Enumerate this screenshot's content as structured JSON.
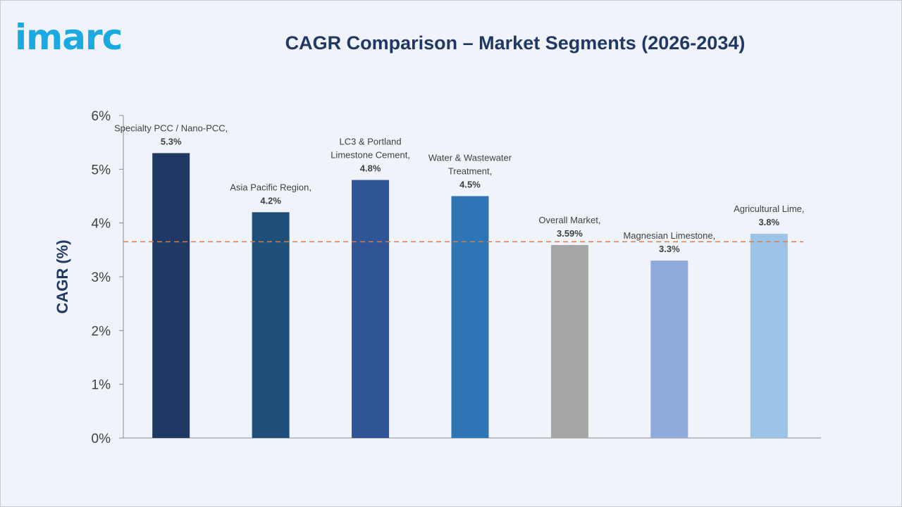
{
  "brand": {
    "logo_text": "imarc",
    "logo_color": "#1aa9e0"
  },
  "chart_data": {
    "type": "bar",
    "title": "CAGR Comparison – Market Segments (2026-2034)",
    "ylabel": "CAGR (%)",
    "xlabel": "",
    "ylim": [
      0,
      6
    ],
    "yticks": [
      "0%",
      "1%",
      "2%",
      "3%",
      "4%",
      "5%",
      "6%"
    ],
    "grid": false,
    "categories": [
      "Specialty PCC / Nano-PCC",
      "Asia Pacific Region",
      "LC3 & Portland Limestone Cement",
      "Water & Wastewater Treatment",
      "Overall Market",
      "Magnesian Limestone",
      "Agricultural Lime"
    ],
    "values": [
      5.3,
      4.2,
      4.8,
      4.5,
      3.59,
      3.3,
      3.8
    ],
    "data_labels": [
      {
        "lines": [
          "Specialty PCC / Nano-PCC,"
        ],
        "value": "5.3%"
      },
      {
        "lines": [
          "Asia Pacific Region,"
        ],
        "value": "4.2%"
      },
      {
        "lines": [
          "LC3 & Portland",
          "Limestone Cement,"
        ],
        "value": "4.8%"
      },
      {
        "lines": [
          "Water & Wastewater",
          "Treatment,"
        ],
        "value": "4.5%"
      },
      {
        "lines": [
          "Overall Market,"
        ],
        "value": "3.59%"
      },
      {
        "lines": [
          "Magnesian Limestone,"
        ],
        "value": "3.3%"
      },
      {
        "lines": [
          "Agricultural Lime,"
        ],
        "value": "3.8%"
      }
    ],
    "bar_colors": [
      "#1f3864",
      "#1f4e79",
      "#2f5597",
      "#2e75b6",
      "#a6a6a6",
      "#8faadc",
      "#9dc3e6"
    ],
    "reference_line": {
      "value": 3.65,
      "style": "dashed",
      "color": "#e07b39"
    }
  }
}
